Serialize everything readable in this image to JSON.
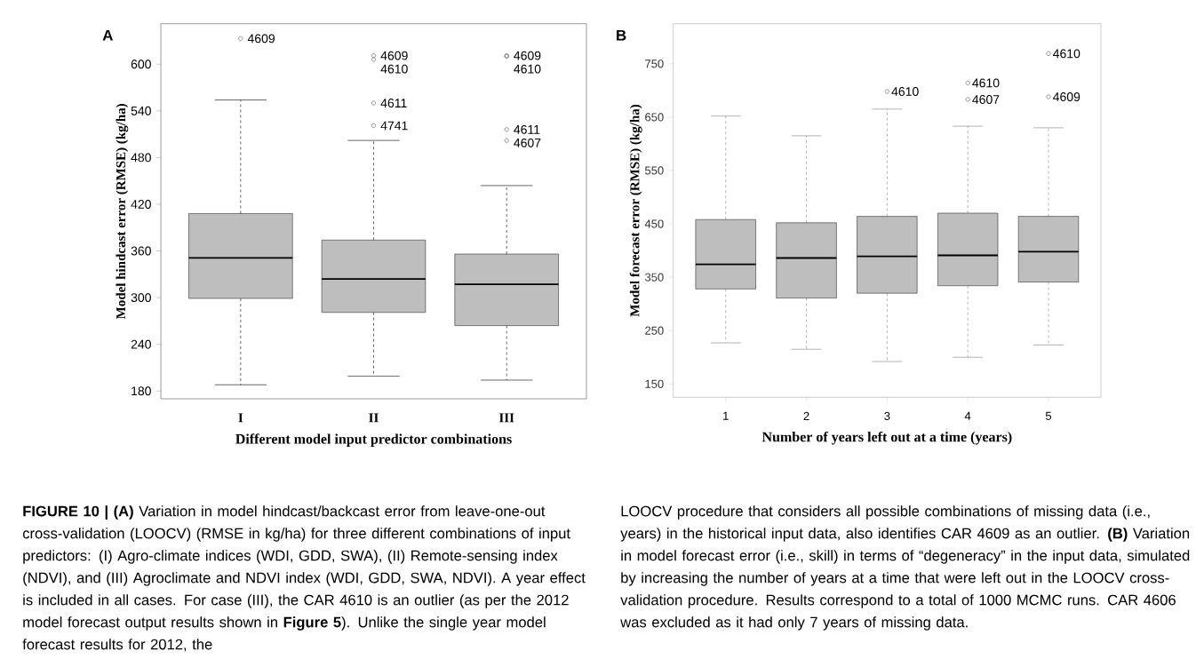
{
  "chart_data": [
    {
      "type": "box",
      "title": "A",
      "xlabel": "Different model input predictor combinations",
      "ylabel": "Model hindcast error (RMSE) (kg/ha)",
      "categories": [
        "I",
        "II",
        "III"
      ],
      "color": "#bebebe",
      "ylim": [
        170,
        652
      ],
      "yticks": [
        180,
        240,
        300,
        360,
        420,
        480,
        540,
        600
      ],
      "boxes": [
        {
          "low": 188,
          "q1": 299,
          "median": 351,
          "q3": 408,
          "high": 554,
          "outliers": [
            633
          ]
        },
        {
          "low": 199,
          "q1": 281,
          "median": 324,
          "q3": 374,
          "high": 502,
          "outliers": [
            611,
            606,
            550,
            521
          ]
        },
        {
          "low": 194,
          "q1": 264,
          "median": 317,
          "q3": 356,
          "high": 444,
          "outliers": [
            611,
            610,
            516,
            502
          ]
        }
      ],
      "annotations": [
        "4609",
        "4609",
        "4610",
        "4611",
        "4741",
        "4609",
        "4610",
        "4611",
        "4607",
        "**FIGURE 10 | (A)** Variation in model hindcast/backcast error from leave-one-out cross-validation (LOOCV) (RMSE in kg/ha) for three different combinations of input predictors: (I) Agro-climate indices (WDI, GDD, SWA), (II) Remote-sensing index (NDVI), and (III) Agroclimate and NDVI index (WDI, GDD, SWA, NDVI). A year effect is included in all cases. For case (III), the CAR 4610 is an outlier (as per the 2012 model forecast output results shown in **Figure 5**). Unlike the single year model forecast results for 2012, the"
      ]
    },
    {
      "type": "box",
      "title": "B",
      "xlabel": "Number of years left out at a time (years)",
      "ylabel": "Model forecast error (RMSE) (kg/ha)",
      "categories": [
        "1",
        "2",
        "3",
        "4",
        "5"
      ],
      "color": "#bebebe",
      "ylim": [
        125,
        825
      ],
      "yticks": [
        150,
        250,
        350,
        450,
        550,
        650,
        750
      ],
      "boxes": [
        {
          "low": 227,
          "q1": 328,
          "median": 374,
          "q3": 458,
          "high": 652
        },
        {
          "low": 215,
          "q1": 311,
          "median": 386,
          "q3": 452,
          "high": 615
        },
        {
          "low": 192,
          "q1": 320,
          "median": 389,
          "q3": 464,
          "high": 665,
          "outliers": [
            698
          ]
        },
        {
          "low": 200,
          "q1": 334,
          "median": 391,
          "q3": 470,
          "high": 633,
          "outliers": [
            714,
            683
          ]
        },
        {
          "low": 223,
          "q1": 341,
          "median": 398,
          "q3": 464,
          "high": 630,
          "outliers": [
            769,
            688
          ]
        }
      ],
      "annotations": [
        "4610",
        "4610",
        "4607",
        "4610",
        "4609",
        "LOOCV procedure that considers all possible combinations of missing data (i.e., years) in the historical input data, also identifies CAR 4609 as an outlier. **(B)** Variation in model forecast error (i.e., skill) in terms of “degeneracy” in the input data, simulated by increasing the number of years at a time that were left out in the LOOCV cross-validation procedure. Results correspond to a total of 1000 MCMC runs. CAR 4606 was excluded as it had only 7 years of missing data."
      ]
    }
  ]
}
